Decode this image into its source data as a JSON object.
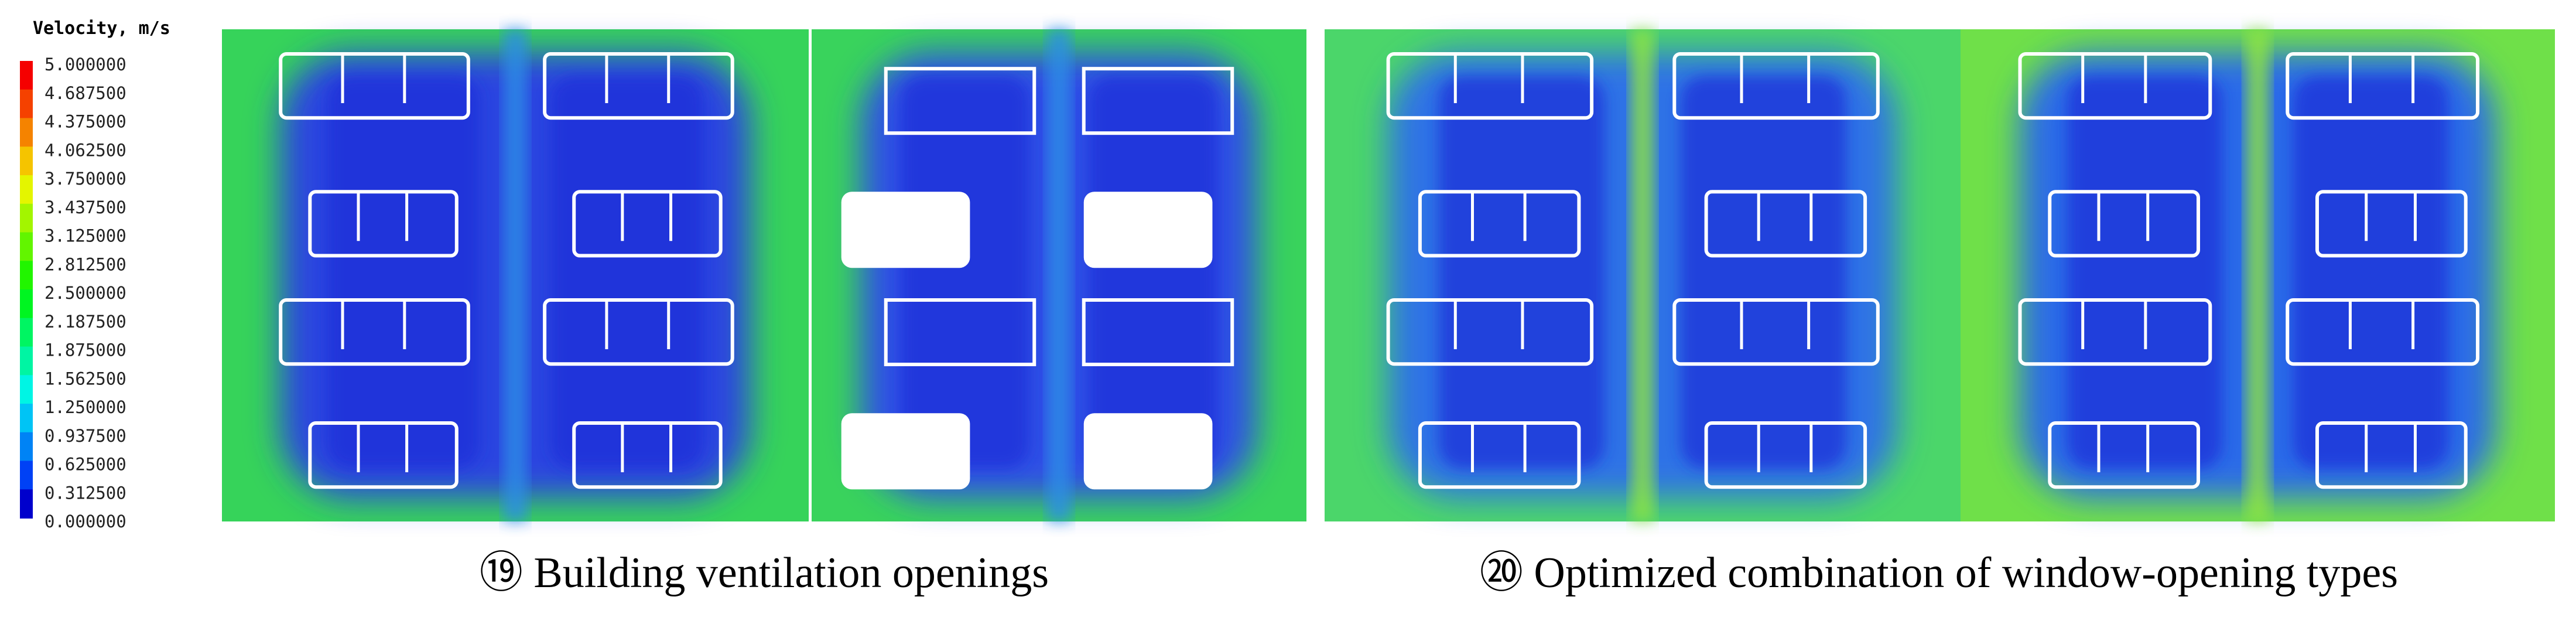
{
  "legend": {
    "title": "Velocity, m/s",
    "labels": [
      "5.000000",
      "4.687500",
      "4.375000",
      "4.062500",
      "3.750000",
      "3.437500",
      "3.125000",
      "2.812500",
      "2.500000",
      "2.187500",
      "1.875000",
      "1.562500",
      "1.250000",
      "0.937500",
      "0.625000",
      "0.312500",
      "0.000000"
    ]
  },
  "captions": [
    "⑲ Building ventilation openings",
    "⑳ Optimized combination of window-opening types"
  ]
}
